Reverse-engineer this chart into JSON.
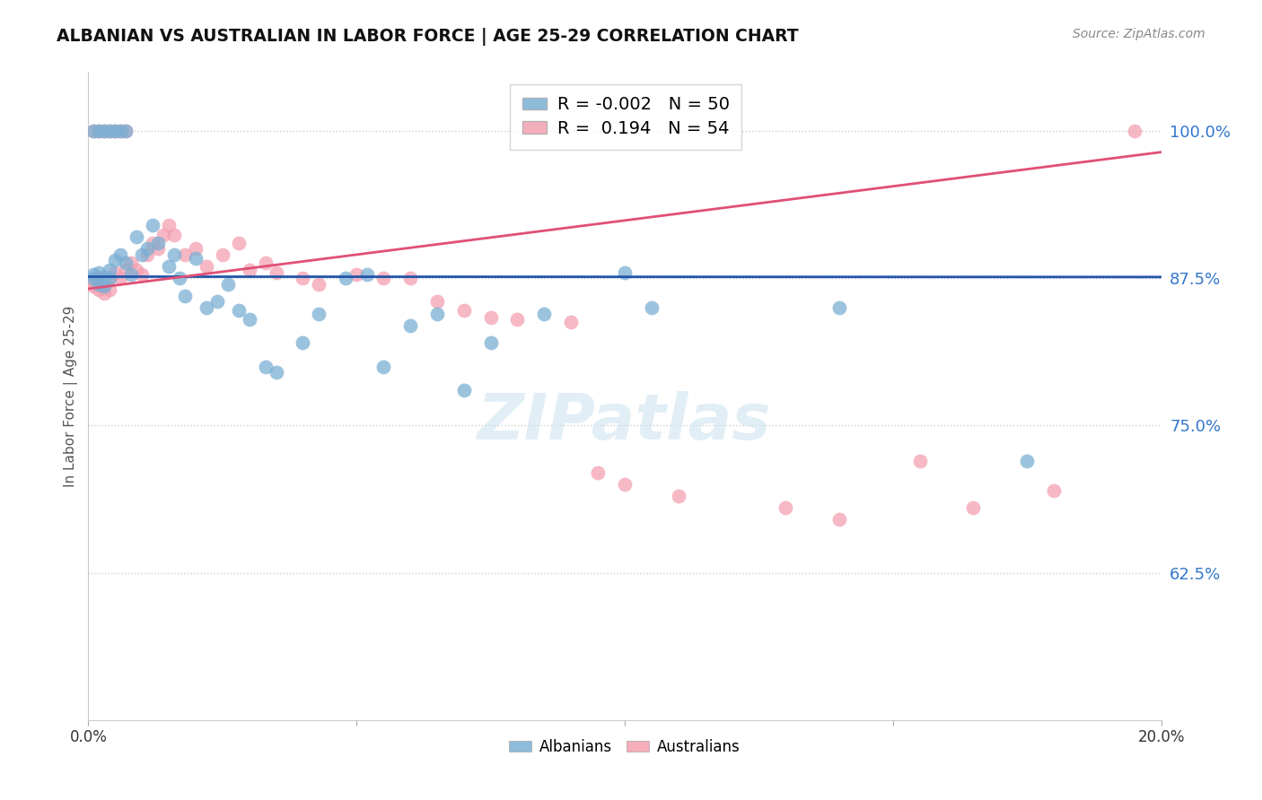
{
  "title": "ALBANIAN VS AUSTRALIAN IN LABOR FORCE | AGE 25-29 CORRELATION CHART",
  "source": "Source: ZipAtlas.com",
  "ylabel": "In Labor Force | Age 25-29",
  "xlim": [
    0.0,
    0.2
  ],
  "ylim": [
    0.5,
    1.05
  ],
  "yticks": [
    0.625,
    0.75,
    0.875,
    1.0
  ],
  "ytick_labels": [
    "62.5%",
    "75.0%",
    "87.5%",
    "100.0%"
  ],
  "albanian_color": "#7bafd4",
  "australian_color": "#f4a0b0",
  "albanian_R": -0.002,
  "albanian_N": 50,
  "australian_R": 0.194,
  "australian_N": 54,
  "alb_line_color": "#2255aa",
  "aus_line_color": "#e05075",
  "alb_x": [
    0.001,
    0.001,
    0.001,
    0.002,
    0.002,
    0.002,
    0.003,
    0.003,
    0.003,
    0.004,
    0.004,
    0.004,
    0.005,
    0.005,
    0.006,
    0.006,
    0.007,
    0.007,
    0.008,
    0.009,
    0.01,
    0.011,
    0.012,
    0.013,
    0.015,
    0.016,
    0.017,
    0.018,
    0.02,
    0.022,
    0.024,
    0.026,
    0.028,
    0.03,
    0.033,
    0.035,
    0.04,
    0.043,
    0.048,
    0.052,
    0.055,
    0.06,
    0.065,
    0.07,
    0.075,
    0.085,
    0.1,
    0.105,
    0.14,
    0.175
  ],
  "alb_y": [
    0.875,
    0.878,
    1.0,
    0.87,
    0.88,
    1.0,
    0.868,
    0.876,
    1.0,
    0.882,
    0.875,
    1.0,
    0.89,
    1.0,
    0.895,
    1.0,
    0.888,
    1.0,
    0.878,
    0.91,
    0.895,
    0.9,
    0.92,
    0.905,
    0.885,
    0.895,
    0.875,
    0.86,
    0.892,
    0.85,
    0.855,
    0.87,
    0.848,
    0.84,
    0.8,
    0.795,
    0.82,
    0.845,
    0.875,
    0.878,
    0.8,
    0.835,
    0.845,
    0.78,
    0.82,
    0.845,
    0.88,
    0.85,
    0.85,
    0.72
  ],
  "aus_x": [
    0.001,
    0.001,
    0.001,
    0.002,
    0.002,
    0.002,
    0.003,
    0.003,
    0.003,
    0.004,
    0.004,
    0.004,
    0.005,
    0.005,
    0.006,
    0.006,
    0.007,
    0.007,
    0.008,
    0.009,
    0.01,
    0.011,
    0.012,
    0.013,
    0.014,
    0.015,
    0.016,
    0.018,
    0.02,
    0.022,
    0.025,
    0.028,
    0.03,
    0.033,
    0.035,
    0.04,
    0.043,
    0.05,
    0.055,
    0.06,
    0.065,
    0.07,
    0.075,
    0.08,
    0.09,
    0.095,
    0.1,
    0.11,
    0.13,
    0.14,
    0.155,
    0.165,
    0.18,
    0.195
  ],
  "aus_y": [
    0.872,
    0.868,
    1.0,
    0.875,
    0.865,
    1.0,
    0.87,
    0.862,
    1.0,
    0.875,
    0.865,
    1.0,
    0.88,
    1.0,
    0.875,
    1.0,
    0.882,
    1.0,
    0.888,
    0.882,
    0.878,
    0.895,
    0.905,
    0.9,
    0.912,
    0.92,
    0.912,
    0.895,
    0.9,
    0.885,
    0.895,
    0.905,
    0.882,
    0.888,
    0.88,
    0.875,
    0.87,
    0.878,
    0.875,
    0.875,
    0.855,
    0.848,
    0.842,
    0.84,
    0.838,
    0.71,
    0.7,
    0.69,
    0.68,
    0.67,
    0.72,
    0.68,
    0.695,
    1.0
  ],
  "alb_line_x": [
    0.0,
    0.2
  ],
  "alb_line_y": [
    0.8763,
    0.876
  ],
  "aus_line_x": [
    0.0,
    0.2
  ],
  "aus_line_y": [
    0.866,
    0.982
  ]
}
